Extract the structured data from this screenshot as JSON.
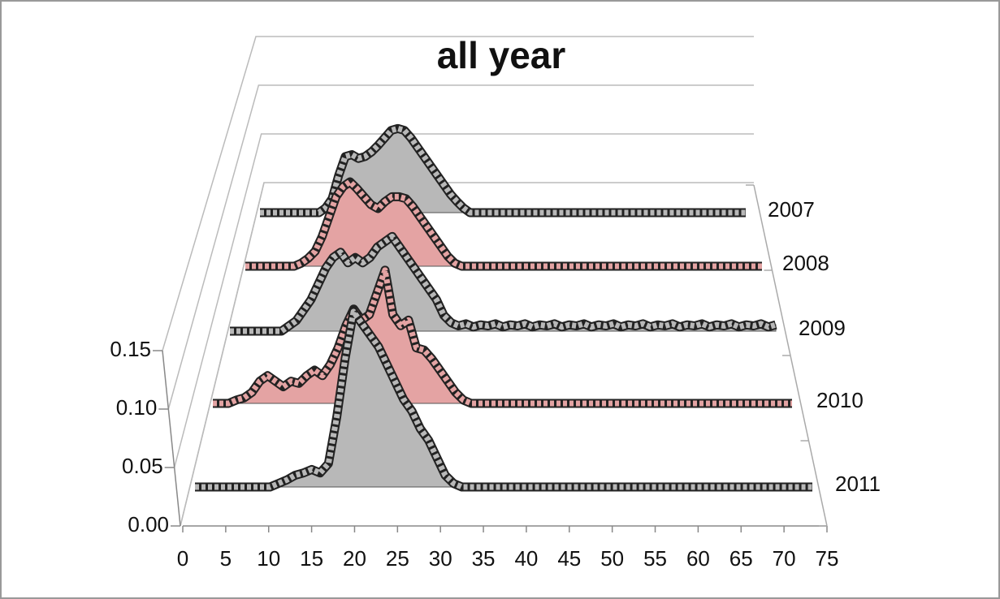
{
  "chart_data": {
    "type": "area",
    "title": "all year",
    "x": [
      0,
      1,
      2,
      3,
      4,
      5,
      6,
      7,
      8,
      9,
      10,
      11,
      12,
      13,
      14,
      15,
      16,
      17,
      18,
      19,
      20,
      21,
      22,
      23,
      24,
      25,
      26,
      27,
      28,
      29,
      30,
      31,
      32,
      33,
      34,
      35,
      36,
      37,
      38,
      39,
      40,
      41,
      42,
      43,
      44,
      45,
      46,
      47,
      48,
      49,
      50,
      51,
      52,
      53,
      54,
      55,
      56,
      57,
      58,
      59,
      60,
      61,
      62,
      63,
      64,
      65,
      66,
      67,
      68,
      69,
      70,
      71,
      72,
      73,
      74
    ],
    "series": [
      {
        "name": "2007",
        "color": "#b8b8b8",
        "values": [
          0,
          0,
          0,
          0,
          0,
          0,
          0,
          0,
          0,
          0,
          0.005,
          0.015,
          0.04,
          0.06,
          0.062,
          0.058,
          0.06,
          0.065,
          0.072,
          0.08,
          0.088,
          0.09,
          0.088,
          0.08,
          0.07,
          0.06,
          0.05,
          0.04,
          0.03,
          0.02,
          0.012,
          0.005,
          0,
          0,
          0,
          0,
          0,
          0,
          0,
          0,
          0,
          0,
          0,
          0,
          0,
          0,
          0,
          0,
          0,
          0,
          0,
          0,
          0,
          0,
          0,
          0,
          0,
          0,
          0,
          0,
          0,
          0,
          0,
          0,
          0,
          0,
          0,
          0,
          0,
          0,
          0,
          0,
          0,
          0,
          0
        ]
      },
      {
        "name": "2008",
        "color": "#e4a3a3",
        "values": [
          0,
          0,
          0,
          0,
          0,
          0,
          0,
          0,
          0.003,
          0.008,
          0.015,
          0.03,
          0.05,
          0.07,
          0.08,
          0.085,
          0.078,
          0.07,
          0.062,
          0.058,
          0.065,
          0.07,
          0.07,
          0.068,
          0.06,
          0.05,
          0.04,
          0.03,
          0.02,
          0.01,
          0.003,
          0,
          0,
          0,
          0,
          0,
          0,
          0,
          0,
          0,
          0,
          0,
          0,
          0,
          0,
          0,
          0,
          0,
          0,
          0,
          0,
          0,
          0,
          0,
          0,
          0,
          0,
          0,
          0,
          0,
          0,
          0,
          0,
          0,
          0,
          0,
          0,
          0,
          0,
          0,
          0,
          0,
          0,
          0,
          0
        ]
      },
      {
        "name": "2009",
        "color": "#b8b8b8",
        "values": [
          0,
          0,
          0,
          0,
          0,
          0,
          0,
          0,
          0.005,
          0.01,
          0.02,
          0.03,
          0.045,
          0.06,
          0.07,
          0.075,
          0.065,
          0.07,
          0.065,
          0.07,
          0.08,
          0.085,
          0.09,
          0.08,
          0.07,
          0.06,
          0.05,
          0.04,
          0.03,
          0.015,
          0.008,
          0.005,
          0.007,
          0.004,
          0.006,
          0.005,
          0.007,
          0.004,
          0.006,
          0.005,
          0.007,
          0.004,
          0.006,
          0.005,
          0.007,
          0.004,
          0.006,
          0.005,
          0.007,
          0.004,
          0.006,
          0.005,
          0.007,
          0.004,
          0.006,
          0.005,
          0.007,
          0.004,
          0.006,
          0.005,
          0.007,
          0.004,
          0.006,
          0.005,
          0.007,
          0.004,
          0.006,
          0.005,
          0.007,
          0.004,
          0.006,
          0.005,
          0.007,
          0.004,
          0.006
        ]
      },
      {
        "name": "2010",
        "color": "#e4a3a3",
        "values": [
          0,
          0,
          0,
          0.003,
          0.005,
          0.01,
          0.02,
          0.025,
          0.02,
          0.015,
          0.02,
          0.018,
          0.025,
          0.03,
          0.025,
          0.035,
          0.05,
          0.07,
          0.085,
          0.075,
          0.08,
          0.1,
          0.12,
          0.08,
          0.07,
          0.075,
          0.05,
          0.048,
          0.04,
          0.03,
          0.02,
          0.01,
          0.003,
          0,
          0,
          0,
          0,
          0,
          0,
          0,
          0,
          0,
          0,
          0,
          0,
          0,
          0,
          0,
          0,
          0,
          0,
          0,
          0,
          0,
          0,
          0,
          0,
          0,
          0,
          0,
          0,
          0,
          0,
          0,
          0,
          0,
          0,
          0,
          0,
          0,
          0,
          0,
          0,
          0,
          0
        ]
      },
      {
        "name": "2011",
        "color": "#b8b8b8",
        "values": [
          0,
          0,
          0,
          0,
          0,
          0,
          0,
          0,
          0,
          0,
          0.003,
          0.006,
          0.01,
          0.012,
          0.015,
          0.012,
          0.02,
          0.06,
          0.11,
          0.15,
          0.14,
          0.13,
          0.12,
          0.105,
          0.09,
          0.075,
          0.065,
          0.05,
          0.04,
          0.025,
          0.01,
          0.003,
          0,
          0,
          0,
          0,
          0,
          0,
          0,
          0,
          0,
          0,
          0,
          0,
          0,
          0,
          0,
          0,
          0,
          0,
          0,
          0,
          0,
          0,
          0,
          0,
          0,
          0,
          0,
          0,
          0,
          0,
          0,
          0,
          0,
          0,
          0,
          0,
          0,
          0,
          0,
          0,
          0,
          0,
          0
        ]
      }
    ],
    "xlim": [
      0,
      75
    ],
    "xticks": [
      0,
      5,
      10,
      15,
      20,
      25,
      30,
      35,
      40,
      45,
      50,
      55,
      60,
      65,
      70,
      75
    ],
    "ylim": [
      0,
      0.15
    ],
    "yticks": [
      {
        "value": 0,
        "label": "0.00"
      },
      {
        "value": 0.05,
        "label": "0.05"
      },
      {
        "value": 0.1,
        "label": "0.10"
      },
      {
        "value": 0.15,
        "label": "0.15"
      }
    ],
    "grid": true
  }
}
